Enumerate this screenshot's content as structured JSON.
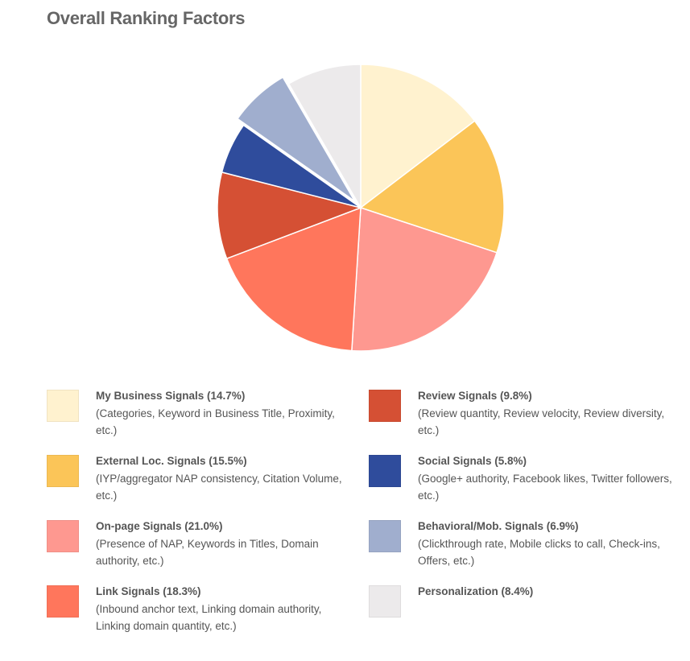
{
  "chart_data": {
    "type": "pie",
    "title": "Overall Ranking Factors",
    "slices": [
      {
        "label": "My Business Signals (14.7%)",
        "value": 14.7,
        "description": "(Categories, Keyword in Business Title, Proximity, etc.)",
        "color": "#FFF2CF"
      },
      {
        "label": "External Loc. Signals (15.5%)",
        "value": 15.5,
        "description": "(IYP/aggregator NAP consistency, Citation Volume, etc.)",
        "color": "#FBC558"
      },
      {
        "label": "On-page Signals (21.0%)",
        "value": 21.0,
        "description": "(Presence of NAP, Keywords in Titles, Domain authority, etc.)",
        "color": "#FE9890"
      },
      {
        "label": "Link Signals (18.3%)",
        "value": 18.3,
        "description": "(Inbound anchor text, Linking domain authority, Linking domain quantity, etc.)",
        "color": "#FF765C"
      },
      {
        "label": "Review Signals (9.8%)",
        "value": 9.8,
        "description": "(Review quantity, Review velocity, Review diversity, etc.)",
        "color": "#D55034"
      },
      {
        "label": "Social Signals (5.8%)",
        "value": 5.8,
        "description": "(Google+ authority, Facebook likes, Twitter followers, etc.)",
        "color": "#2F4C9C"
      },
      {
        "label": "Behavioral/Mob. Signals (6.9%)",
        "value": 6.9,
        "description": "(Clickthrough rate, Mobile clicks to call, Check-ins, Offers, etc.)",
        "color": "#A0AECE",
        "exploded": true
      },
      {
        "label": "Personalization (8.4%)",
        "value": 8.4,
        "description": "",
        "color": "#ECEAEB"
      }
    ],
    "legend_placement": "bottom, two columns"
  }
}
